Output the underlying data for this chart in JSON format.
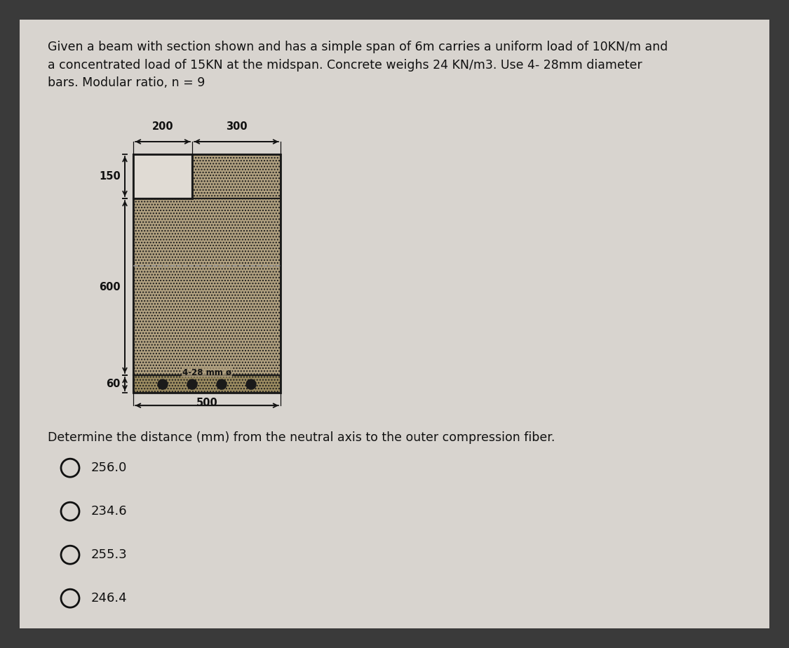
{
  "bg_color": "#3a3a3a",
  "content_bg": "#d8d4cf",
  "title_text": "Given a beam with section shown and has a simple span of 6m carries a uniform load of 10KN/m and\na concentrated load of 15KN at the midspan. Concrete weighs 24 KN/m3. Use 4- 28mm diameter\nbars. Modular ratio, n = 9",
  "title_fontsize": 12.5,
  "question_text": "Determine the distance (mm) from the neutral axis to the outer compression fiber.",
  "question_fontsize": 12.5,
  "choices": [
    "256.0",
    "234.6",
    "255.3",
    "246.4"
  ],
  "choice_fontsize": 13,
  "dim_200": "200",
  "dim_300": "300",
  "dim_150": "150",
  "dim_600": "600",
  "dim_60": "60",
  "dim_500": "500",
  "bar_label": "4-28 mm ø",
  "text_color": "#111111",
  "circle_color": "#111111",
  "hatch_color": "#b0a080",
  "bot_hatch_color": "#9a8a60",
  "void_color": "#e0dbd4",
  "na_color": "#999999"
}
